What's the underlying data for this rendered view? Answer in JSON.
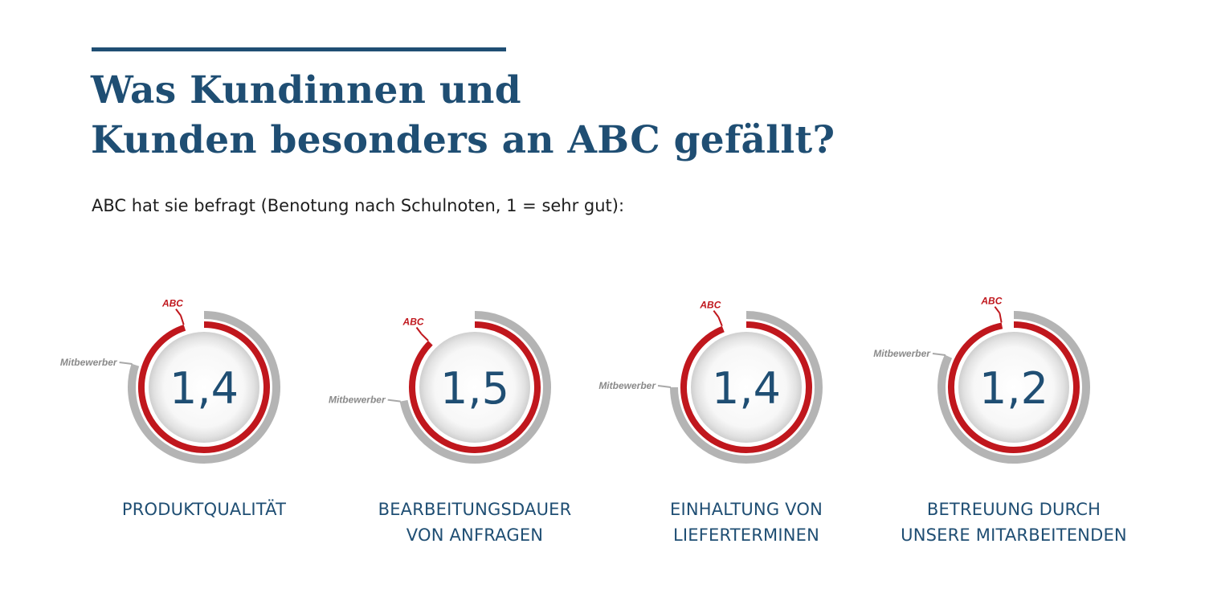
{
  "header": {
    "title_line1": "Was Kundinnen und",
    "title_line2": "Kunden besonders an ABC gefällt?",
    "subtitle": "ABC hat sie befragt (Benotung nach Schulnoten, 1 = sehr gut):"
  },
  "colors": {
    "primary": "#1f4e73",
    "abc_ring": "#c0171d",
    "competitor_ring": "#b4b4b4"
  },
  "chart_data": {
    "type": "radial-gauge",
    "series_labels": {
      "abc": "ABC",
      "competitor": "Mitbewerber"
    },
    "items": [
      {
        "category_lines": [
          "PRODUKTQUALITÄT"
        ],
        "score": "1,4",
        "abc_fraction": 0.95,
        "competitor_fraction": 0.8
      },
      {
        "category_lines": [
          "BEARBEITUNGSDAUER",
          "VON ANFRAGEN"
        ],
        "score": "1,5",
        "abc_fraction": 0.875,
        "competitor_fraction": 0.72
      },
      {
        "category_lines": [
          "EINHALTUNG VON",
          "LIEFERTERMINEN"
        ],
        "score": "1,4",
        "abc_fraction": 0.94,
        "competitor_fraction": 0.75
      },
      {
        "category_lines": [
          "BETREUUNG DURCH",
          "UNSERE MITARBEITENDEN"
        ],
        "score": "1,2",
        "abc_fraction": 0.97,
        "competitor_fraction": 0.82
      }
    ]
  }
}
